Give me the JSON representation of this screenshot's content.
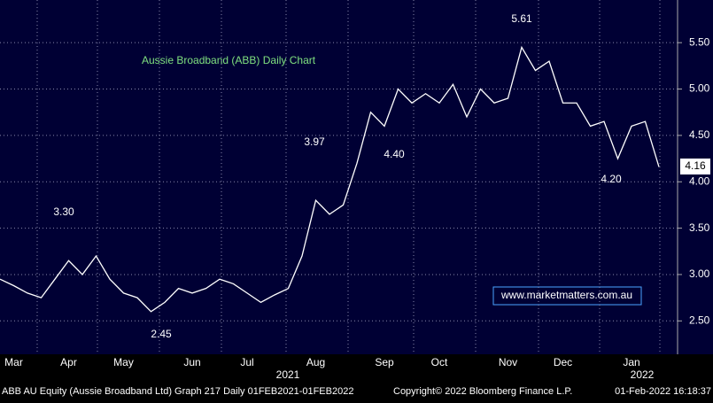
{
  "chart_data": {
    "type": "line",
    "title": "Aussie Broadband (ABB) Daily Chart",
    "categories": [
      null,
      "Mar",
      null,
      null,
      null,
      "Apr",
      null,
      null,
      null,
      "May",
      null,
      null,
      null,
      null,
      "Jun",
      null,
      null,
      null,
      "Jul",
      null,
      null,
      null,
      null,
      "Aug",
      null,
      null,
      null,
      null,
      "Sep",
      null,
      null,
      null,
      "Oct",
      null,
      null,
      null,
      null,
      "Nov",
      null,
      null,
      null,
      "Dec",
      null,
      null,
      null,
      null,
      "Jan",
      null,
      null
    ],
    "series": [
      {
        "name": "ABB AU Equity",
        "color": "#ffffff",
        "values": [
          2.95,
          2.88,
          2.8,
          2.75,
          2.95,
          3.15,
          3.0,
          3.2,
          2.95,
          2.8,
          2.75,
          2.6,
          2.7,
          2.85,
          2.8,
          2.85,
          2.95,
          2.9,
          2.8,
          2.7,
          2.78,
          2.85,
          3.2,
          3.8,
          3.65,
          3.75,
          4.2,
          4.75,
          4.6,
          5.0,
          4.85,
          4.95,
          4.85,
          5.05,
          4.7,
          5.0,
          4.85,
          4.9,
          5.45,
          5.2,
          5.3,
          4.85,
          4.85,
          4.6,
          4.65,
          4.25,
          4.6,
          4.65,
          4.16
        ]
      }
    ],
    "ylim": [
      2.14,
      5.96
    ],
    "yticks": [
      {
        "value": 2.5,
        "label": "2.50"
      },
      {
        "value": 3,
        "label": "3.00"
      },
      {
        "value": 3.5,
        "label": "3.50"
      },
      {
        "value": 4,
        "label": "4.00"
      },
      {
        "value": 4.5,
        "label": "4.50"
      },
      {
        "value": 5,
        "label": "5.00"
      },
      {
        "value": 5.5,
        "label": "5.50"
      }
    ],
    "grid": true,
    "annotations": [
      "3.30",
      "2.45",
      "3.97",
      "4.40",
      "5.61",
      "4.20"
    ],
    "last_price": "4.16",
    "years": [
      "2021",
      "2022"
    ],
    "watermark": "www.marketmatters.com.au",
    "footer": [
      "ABB AU Equity (Aussie Broadband Ltd) Graph 217  Daily 01FEB2021-01FEB2022",
      "Copyright© 2022 Bloomberg Finance L.P.",
      "01-Feb-2022 16:18:37"
    ]
  }
}
